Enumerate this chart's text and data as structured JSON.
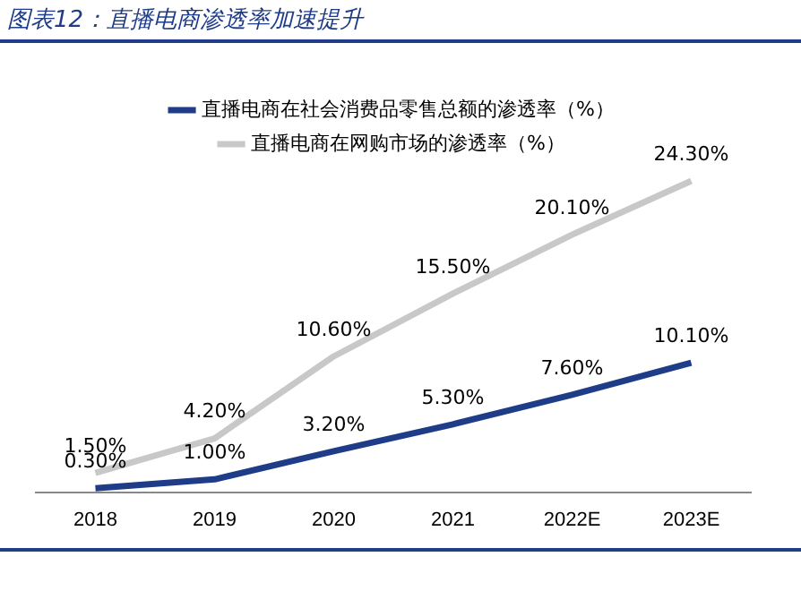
{
  "chart_data": {
    "type": "line",
    "title": "图表12：直播电商渗透率加速提升",
    "categories": [
      "2018",
      "2019",
      "2020",
      "2021",
      "2022E",
      "2023E"
    ],
    "series": [
      {
        "name": "直播电商在社会消费品零售总额的渗透率（%）",
        "color": "#1f3c88",
        "values": [
          0.3,
          1.0,
          3.2,
          5.3,
          7.6,
          10.1
        ],
        "value_labels": [
          "0.30%",
          "1.00%",
          "3.20%",
          "5.30%",
          "7.60%",
          "10.10%"
        ]
      },
      {
        "name": "直播电商在网购市场的渗透率（%）",
        "color": "#c8c8c8",
        "values": [
          1.5,
          4.2,
          10.6,
          15.5,
          20.1,
          24.3
        ],
        "value_labels": [
          "1.50%",
          "4.20%",
          "10.60%",
          "15.50%",
          "20.10%",
          "24.30%"
        ]
      }
    ],
    "tick_labels": "x",
    "grid": false,
    "legend": "top",
    "marker": "none"
  }
}
